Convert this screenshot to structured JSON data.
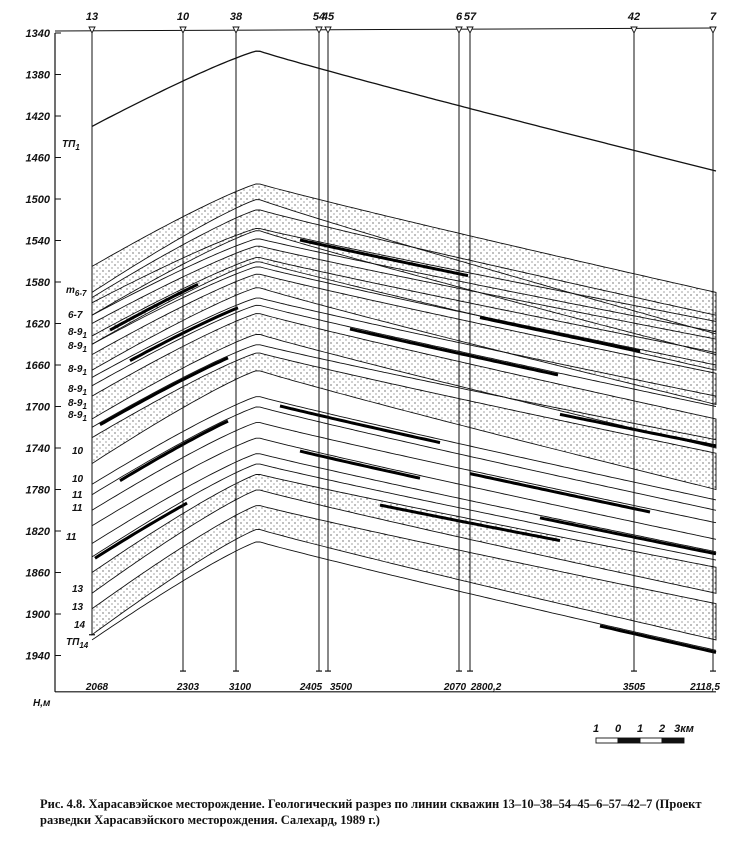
{
  "chart_data": {
    "type": "diagram",
    "y_axis": {
      "unit_label": "Н,м",
      "ticks": [
        1340,
        1380,
        1420,
        1460,
        1500,
        1540,
        1580,
        1620,
        1660,
        1700,
        1740,
        1780,
        1820,
        1860,
        1900,
        1940
      ],
      "range": [
        1340,
        1975
      ],
      "inverted": true
    },
    "wells": [
      {
        "name": "13",
        "depth": "2068"
      },
      {
        "name": "10",
        "depth": "2303"
      },
      {
        "name": "38",
        "depth": "3100"
      },
      {
        "name": "54",
        "depth": "2405"
      },
      {
        "name": "45",
        "depth": "3500"
      },
      {
        "name": "6",
        "depth": "2070"
      },
      {
        "name": "57",
        "depth": "2800,2"
      },
      {
        "name": "42",
        "depth": "3505"
      },
      {
        "name": "7",
        "depth": "2118,5"
      }
    ],
    "layer_labels": [
      "ТП1",
      "m6-7",
      "6-7",
      "8-91",
      "8-91",
      "8-91",
      "8-91",
      "8-91",
      "8-91",
      "10",
      "10",
      "11",
      "11",
      "11",
      "13",
      "13",
      "14",
      "ТП14"
    ],
    "scale_bar": {
      "labels": [
        "1",
        "0",
        "1",
        "2",
        "3км"
      ]
    },
    "caption": "Рис. 4.8. Харасавэйское месторождение. Геологический разрез по линии скважин 13–10–38–54–45–6–57–42–7 (Проект разведки Харасавэйского месторождения. Салехард, 1989 г.)"
  }
}
